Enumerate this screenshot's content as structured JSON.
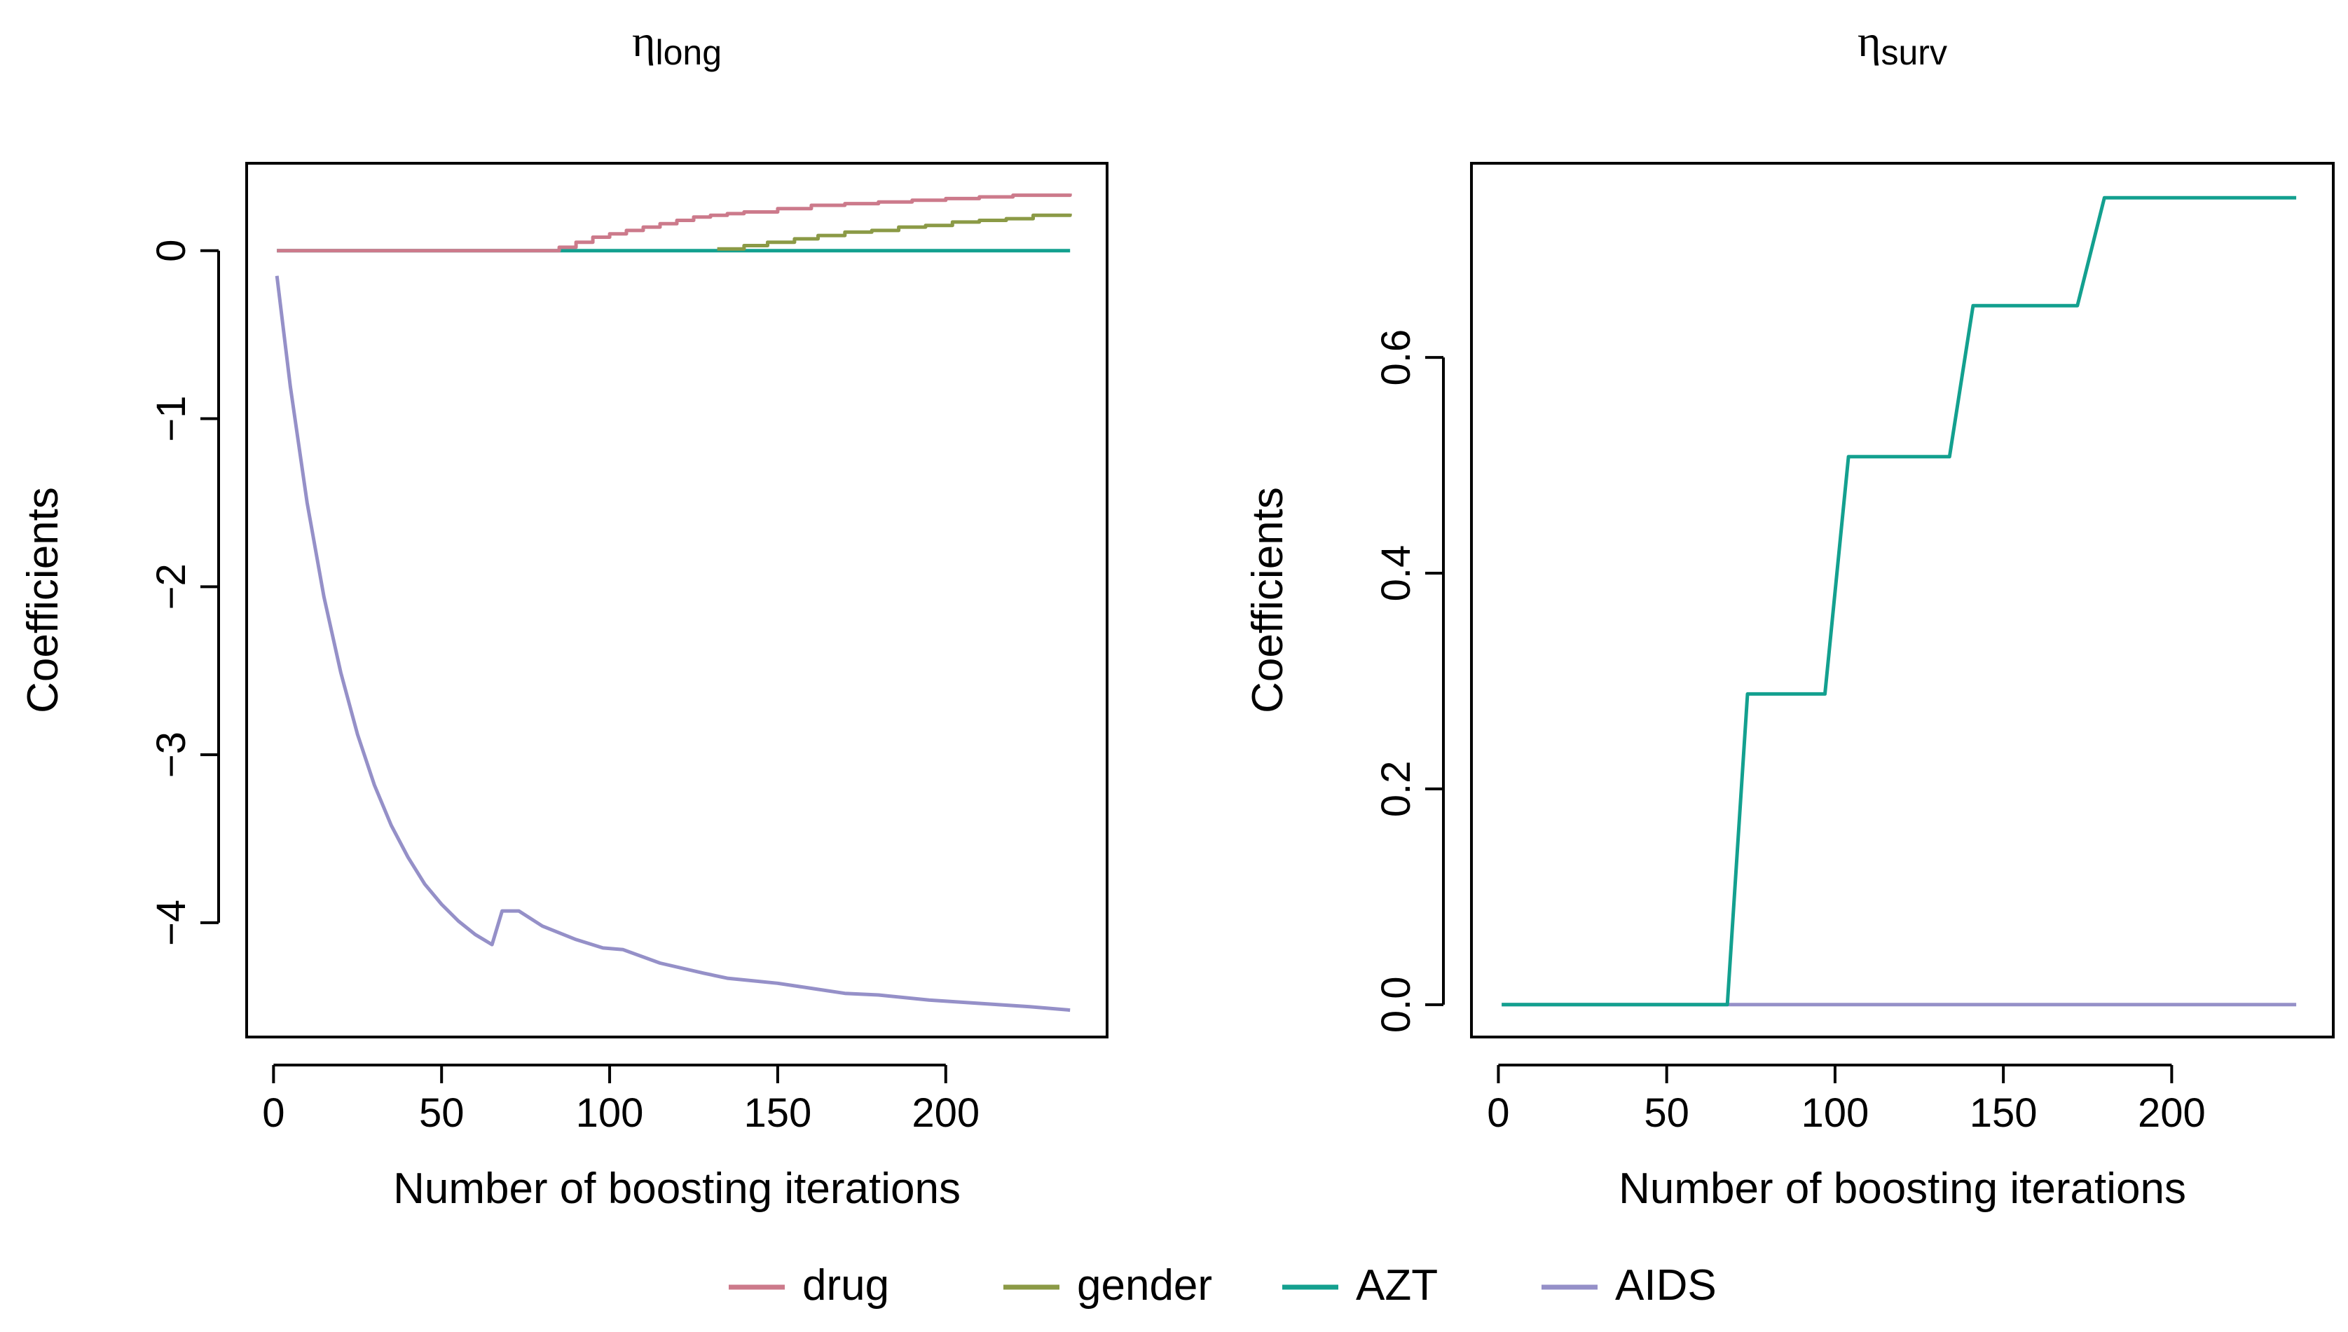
{
  "colors": {
    "drug": "#CC7A8B",
    "gender": "#8B9A46",
    "AZT": "#13A08F",
    "AIDS": "#9590C8",
    "axis": "#000000",
    "background": "#FFFFFF"
  },
  "legend": {
    "placement": "bottom-center",
    "items": [
      {
        "label": "drug",
        "color": "#CC7A8B"
      },
      {
        "label": "gender",
        "color": "#8B9A46"
      },
      {
        "label": "AZT",
        "color": "#13A08F"
      },
      {
        "label": "AIDS",
        "color": "#9590C8"
      }
    ]
  },
  "chart_data": [
    {
      "type": "line",
      "title": {
        "symbol": "η",
        "subscript": "long"
      },
      "xlabel": "Number of boosting iterations",
      "ylabel": "Coefficients",
      "xlim": [
        -8,
        248
      ],
      "ylim": [
        -4.68,
        0.52
      ],
      "xticks": [
        0,
        50,
        100,
        150,
        200
      ],
      "xtick_labels": [
        "0",
        "50",
        "100",
        "150",
        "200"
      ],
      "yticks": [
        -4,
        -3,
        -2,
        -1,
        0
      ],
      "ytick_labels": [
        "−4",
        "−3",
        "−2",
        "−1",
        "0"
      ],
      "grid": false,
      "series": [
        {
          "name": "AZT",
          "color": "#13A08F",
          "step": false,
          "x": [
            1,
            237
          ],
          "y": [
            0,
            0
          ]
        },
        {
          "name": "AIDS",
          "color": "#9590C8",
          "step": false,
          "x": [
            1,
            5,
            10,
            15,
            20,
            25,
            30,
            35,
            40,
            45,
            50,
            55,
            60,
            65,
            68,
            73,
            80,
            90,
            98,
            104,
            115,
            128,
            135,
            150,
            160,
            170,
            180,
            195,
            210,
            225,
            237
          ],
          "y": [
            -0.15,
            -0.81,
            -1.5,
            -2.06,
            -2.51,
            -2.88,
            -3.18,
            -3.42,
            -3.61,
            -3.77,
            -3.89,
            -3.99,
            -4.07,
            -4.13,
            -3.93,
            -3.93,
            -4.02,
            -4.1,
            -4.15,
            -4.16,
            -4.24,
            -4.3,
            -4.33,
            -4.36,
            -4.39,
            -4.42,
            -4.43,
            -4.46,
            -4.48,
            -4.5,
            -4.52
          ]
        },
        {
          "name": "drug",
          "color": "#CC7A8B",
          "step": true,
          "x": [
            1,
            80,
            85,
            90,
            95,
            100,
            105,
            110,
            115,
            120,
            125,
            130,
            135,
            140,
            150,
            160,
            170,
            180,
            190,
            200,
            210,
            220,
            237
          ],
          "y": [
            0,
            0,
            0.02,
            0.05,
            0.08,
            0.1,
            0.12,
            0.14,
            0.16,
            0.18,
            0.2,
            0.21,
            0.22,
            0.23,
            0.25,
            0.27,
            0.28,
            0.29,
            0.3,
            0.31,
            0.32,
            0.33,
            0.34
          ]
        },
        {
          "name": "gender",
          "color": "#8B9A46",
          "step": true,
          "x": [
            132,
            140,
            147,
            155,
            162,
            170,
            178,
            186,
            194,
            202,
            210,
            218,
            226,
            237
          ],
          "y": [
            0.01,
            0.03,
            0.05,
            0.07,
            0.09,
            0.11,
            0.12,
            0.14,
            0.15,
            0.17,
            0.18,
            0.19,
            0.21,
            0.22
          ]
        }
      ]
    },
    {
      "type": "line",
      "title": {
        "symbol": "η",
        "subscript": "surv"
      },
      "xlabel": "Number of boosting iterations",
      "ylabel": "Coefficients",
      "xlim": [
        -8,
        248
      ],
      "ylim": [
        -0.03,
        0.78
      ],
      "xticks": [
        0,
        50,
        100,
        150,
        200
      ],
      "xtick_labels": [
        "0",
        "50",
        "100",
        "150",
        "200"
      ],
      "yticks": [
        0.0,
        0.2,
        0.4,
        0.6
      ],
      "ytick_labels": [
        "0.0",
        "0.2",
        "0.4",
        "0.6"
      ],
      "grid": false,
      "series": [
        {
          "name": "AIDS",
          "color": "#9590C8",
          "step": false,
          "x": [
            1,
            237
          ],
          "y": [
            0,
            0
          ]
        },
        {
          "name": "AZT",
          "color": "#13A08F",
          "step": false,
          "x": [
            1,
            68,
            74,
            97,
            104,
            134,
            141,
            172,
            180,
            237
          ],
          "y": [
            0,
            0,
            0.288,
            0.288,
            0.508,
            0.508,
            0.648,
            0.648,
            0.748,
            0.748
          ]
        }
      ]
    }
  ]
}
